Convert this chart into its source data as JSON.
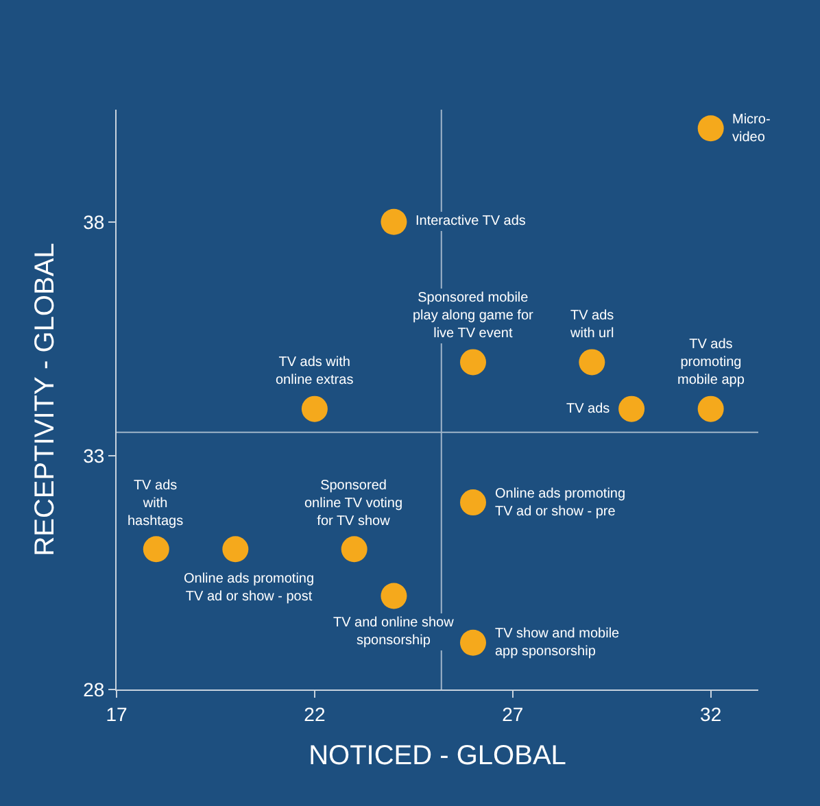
{
  "chart_data": {
    "type": "scatter",
    "xlabel": "NOTICED - GLOBAL",
    "ylabel": "RECEPTIVITY - GLOBAL",
    "x": [
      32,
      24,
      26,
      29,
      32,
      30,
      22,
      26,
      18,
      20,
      23,
      24,
      26
    ],
    "series": [
      {
        "color": "#f5a91c",
        "values": [
          40,
          38,
          35,
          35,
          34,
          34,
          34,
          32,
          31,
          31,
          31,
          30,
          29
        ]
      }
    ],
    "marker": "circle",
    "grid": false,
    "xlim": [
      17,
      33.2
    ],
    "ylim": [
      28,
      40.4
    ],
    "xticks": [
      17,
      22,
      27,
      32
    ],
    "yticks": [
      28,
      33,
      38
    ],
    "ref_lines": [
      {
        "axis": "x",
        "value": 25.2,
        "color": "#9fb4c8"
      },
      {
        "axis": "y",
        "value": 33.5,
        "color": "#9fb4c8"
      }
    ],
    "annotations": [
      {
        "text": "Micro-\nvideo",
        "x": 32,
        "y": 40
      },
      {
        "text": "Interactive TV ads",
        "x": 24,
        "y": 38
      },
      {
        "text": "Sponsored mobile\nplay along game for\nlive TV event",
        "x": 26,
        "y": 35
      },
      {
        "text": "TV ads\nwith url",
        "x": 29,
        "y": 35
      },
      {
        "text": "TV ads\npromoting\nmobile app",
        "x": 32,
        "y": 34
      },
      {
        "text": "TV ads",
        "x": 30,
        "y": 34
      },
      {
        "text": "TV ads with\nonline extras",
        "x": 22,
        "y": 34
      },
      {
        "text": "Online ads promoting\nTV ad or show - pre",
        "x": 26,
        "y": 32
      },
      {
        "text": "TV ads\nwith\nhashtags",
        "x": 18,
        "y": 31
      },
      {
        "text": "Online ads promoting\nTV ad or show - post",
        "x": 20,
        "y": 31
      },
      {
        "text": "Sponsored\nonline TV voting\nfor TV show",
        "x": 23,
        "y": 31
      },
      {
        "text": "TV and online show\nsponsorship",
        "x": 24,
        "y": 30
      },
      {
        "text": "TV show and mobile\napp sponsorship",
        "x": 26,
        "y": 29
      }
    ]
  }
}
